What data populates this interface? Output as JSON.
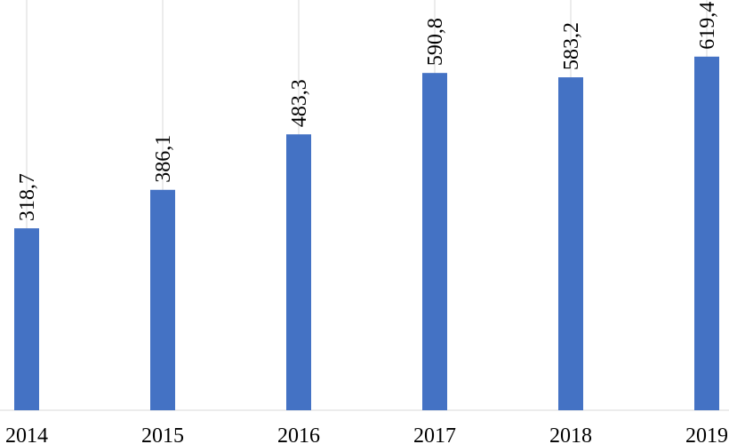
{
  "chart_data": {
    "type": "bar",
    "categories": [
      "2014",
      "2015",
      "2016",
      "2017",
      "2018",
      "2019"
    ],
    "values": [
      318.7,
      386.1,
      483.3,
      590.8,
      583.2,
      619.4
    ],
    "value_labels": [
      "318,7",
      "386,1",
      "483,3",
      "590,8",
      "583,2",
      "619,4"
    ],
    "title": "",
    "xlabel": "",
    "ylabel": "",
    "ylim": [
      0,
      700
    ],
    "bar_color": "#4472c4",
    "grid": "vertical category separators",
    "legend": "none"
  }
}
